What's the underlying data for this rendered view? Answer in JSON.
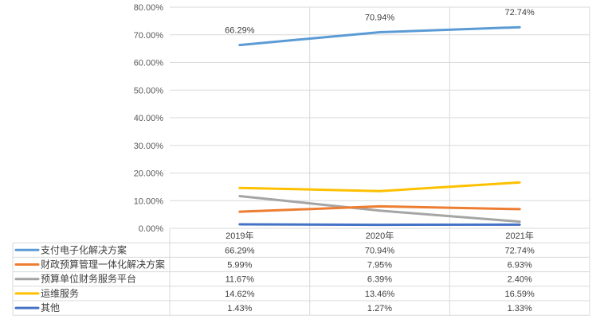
{
  "chart_data": {
    "type": "line",
    "categories": [
      "2019年",
      "2020年",
      "2021年"
    ],
    "ylim": [
      0,
      0.8
    ],
    "yticks": [
      "0.00%",
      "10.00%",
      "20.00%",
      "30.00%",
      "40.00%",
      "50.00%",
      "60.00%",
      "70.00%",
      "80.00%"
    ],
    "legend": "data-table",
    "series": [
      {
        "name": "支付电子化解决方案",
        "color": "#5B9BD5",
        "values": [
          0.6629,
          0.7094,
          0.7274
        ],
        "labels": [
          "66.29%",
          "70.94%",
          "72.74%"
        ]
      },
      {
        "name": "财政预算管理一体化解决方案",
        "color": "#ED7D31",
        "values": [
          0.0599,
          0.0795,
          0.0693
        ],
        "labels": [
          "5.99%",
          "7.95%",
          "6.93%"
        ]
      },
      {
        "name": "预算单位财务服务平台",
        "color": "#A5A5A5",
        "values": [
          0.1167,
          0.0639,
          0.024
        ],
        "labels": [
          "11.67%",
          "6.39%",
          "2.40%"
        ]
      },
      {
        "name": "运维服务",
        "color": "#FFC000",
        "values": [
          0.1462,
          0.1346,
          0.1659
        ],
        "labels": [
          "14.62%",
          "13.46%",
          "16.59%"
        ]
      },
      {
        "name": "其他",
        "color": "#4472C4",
        "values": [
          0.0143,
          0.0127,
          0.0133
        ],
        "labels": [
          "1.43%",
          "1.27%",
          "1.33%"
        ]
      }
    ],
    "data_labels_series": 0
  }
}
